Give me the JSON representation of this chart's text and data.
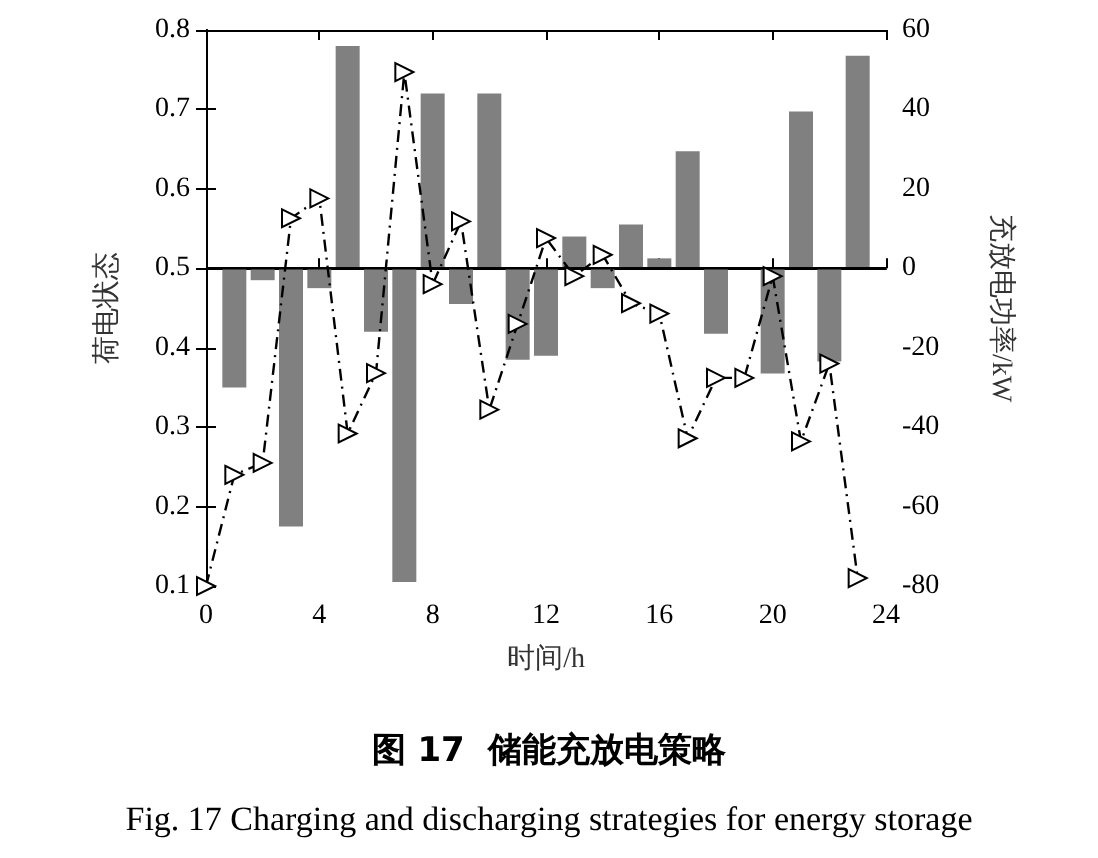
{
  "chart_data": {
    "type": "bar",
    "title": "图 17  储能充放电策略",
    "subtitle": "Fig. 17 Charging and discharging strategies for energy storage",
    "xlabel": "时间/h",
    "ylabel": "荷电状态",
    "y2label": "充放电功率/kW",
    "x": [
      0,
      1,
      2,
      3,
      4,
      5,
      6,
      7,
      8,
      9,
      10,
      11,
      12,
      13,
      14,
      15,
      16,
      17,
      18,
      19,
      20,
      21,
      22,
      23
    ],
    "series": [
      {
        "axis": "y2",
        "color": "#808080",
        "values": [
          0,
          -30,
          -3,
          -65,
          -5,
          56,
          -16,
          -79,
          44,
          -9,
          44,
          -23,
          -22,
          8,
          -5,
          11,
          2.5,
          29.5,
          -16.5,
          0,
          -26.5,
          39.5,
          -23.5,
          53.5
        ]
      },
      {
        "type": "line",
        "axis": "y",
        "color": "#000000",
        "marker": "triangle",
        "line_style": "dashed",
        "values": [
          0.1,
          0.24,
          0.255,
          0.563,
          0.588,
          0.292,
          0.368,
          0.747,
          0.48,
          0.559,
          0.322,
          0.43,
          0.538,
          0.49,
          0.517,
          0.456,
          0.443,
          0.286,
          0.362,
          0.362,
          0.49,
          0.282,
          0.38,
          0.11
        ]
      }
    ],
    "xlim": [
      0,
      24
    ],
    "xticks": [
      0,
      4,
      8,
      12,
      16,
      20,
      24
    ],
    "ylim": [
      0.1,
      0.8
    ],
    "yticks": [
      0.1,
      0.2,
      0.3,
      0.4,
      0.5,
      0.6,
      0.7,
      0.8
    ],
    "y2lim": [
      -80,
      60
    ],
    "y2ticks": [
      -80,
      -60,
      -40,
      -20,
      0,
      20,
      40,
      60
    ],
    "ref_lines": [
      {
        "axis": "y2",
        "value": 0
      }
    ],
    "grid": false
  }
}
